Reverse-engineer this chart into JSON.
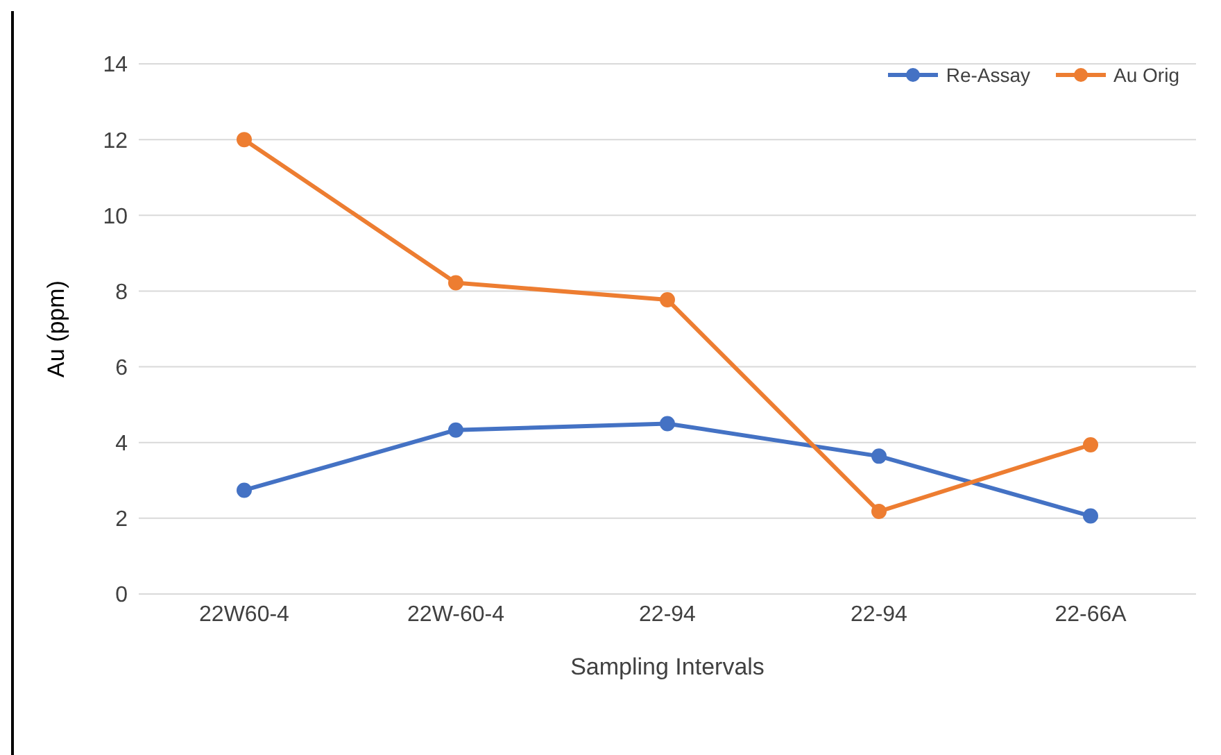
{
  "chart_data": {
    "type": "line",
    "xlabel": "Sampling Intervals",
    "ylabel": "Au (ppm)",
    "categories": [
      "22W60-4",
      "22W-60-4",
      "22-94",
      "22-94",
      "22-66A"
    ],
    "series": [
      {
        "name": "Re-Assay",
        "color": "#4472c4",
        "values": [
          2.74,
          4.33,
          4.5,
          3.64,
          2.06
        ]
      },
      {
        "name": "Au Orig",
        "color": "#ed7d31",
        "values": [
          12.0,
          8.22,
          7.77,
          2.18,
          3.94
        ]
      }
    ],
    "ylim": [
      0,
      14
    ],
    "yticks": [
      0,
      2,
      4,
      6,
      8,
      10,
      12,
      14
    ],
    "grid": "y",
    "legend": "top right",
    "marker": "circle",
    "line_style": "solid"
  }
}
